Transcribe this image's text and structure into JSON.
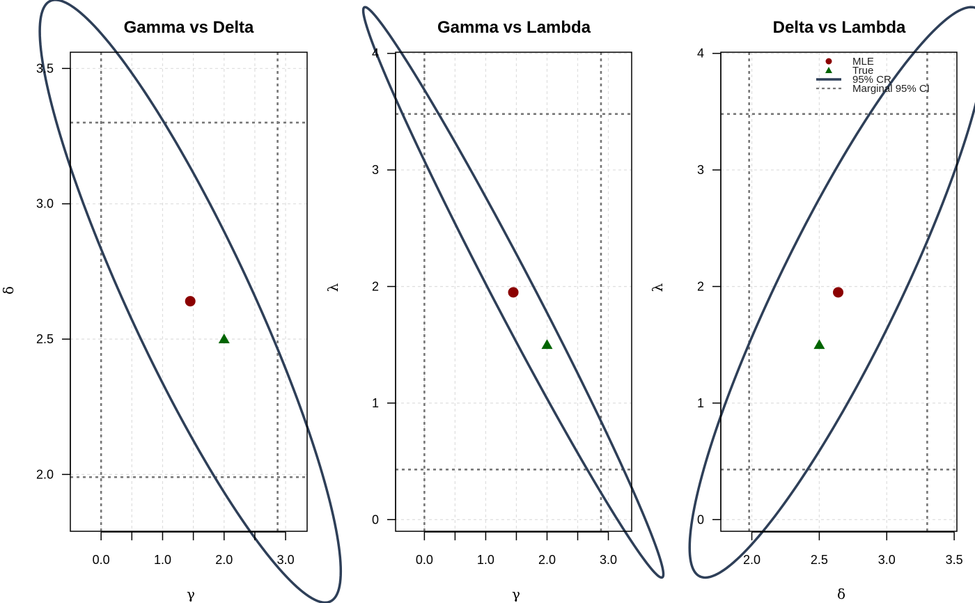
{
  "colors": {
    "mle": "#8b0000",
    "true": "#006400",
    "cr": "#2e3f58",
    "ci": "#777777",
    "grid": "#dedede"
  },
  "legend": {
    "entries": [
      {
        "label": "MLE",
        "kind": "point-circle",
        "color": "#8b0000"
      },
      {
        "label": "True",
        "kind": "point-triangle",
        "color": "#006400"
      },
      {
        "label": "95% CR",
        "kind": "line-solid",
        "color": "#2e3f58"
      },
      {
        "label": "Marginal 95% CI",
        "kind": "line-dashed",
        "color": "#777777"
      }
    ],
    "placement": "top-right of third panel"
  },
  "chart_data": [
    {
      "type": "scatter",
      "title": "Gamma vs Delta",
      "xlabel": "γ",
      "ylabel": "δ",
      "xlim": [
        -0.5,
        3.35
      ],
      "ylim": [
        1.79,
        3.56
      ],
      "xticks": [
        0.0,
        0.5,
        1.0,
        1.5,
        2.0,
        2.5,
        3.0
      ],
      "xtick_labels": [
        "0.0",
        "",
        "1.0",
        "",
        "2.0",
        "",
        "3.0"
      ],
      "yticks": [
        2.0,
        2.5,
        3.0,
        3.5
      ],
      "ytick_labels": [
        "2.0",
        "2.5",
        "3.0",
        "3.5"
      ],
      "mle": [
        1.45,
        2.64
      ],
      "true": [
        2.0,
        2.5
      ],
      "ci_x": [
        0.0,
        2.87
      ],
      "ci_y": [
        1.99,
        3.3
      ],
      "region": {
        "center": [
          1.45,
          2.64
        ],
        "sx": 1.0,
        "sy": 0.455,
        "rho": -0.896,
        "c": 2.447
      },
      "grid": true
    },
    {
      "type": "scatter",
      "title": "Gamma vs Lambda",
      "xlabel": "γ",
      "ylabel": "λ",
      "xlim": [
        -0.47,
        3.38
      ],
      "ylim": [
        -0.1,
        4.01
      ],
      "xticks": [
        0.0,
        0.5,
        1.0,
        1.5,
        2.0,
        2.5,
        3.0
      ],
      "xtick_labels": [
        "0.0",
        "",
        "1.0",
        "",
        "2.0",
        "",
        "3.0"
      ],
      "yticks": [
        0,
        1,
        2,
        3,
        4
      ],
      "ytick_labels": [
        "0",
        "1",
        "2",
        "3",
        "4"
      ],
      "mle": [
        1.45,
        1.95
      ],
      "true": [
        2.0,
        1.5
      ],
      "ci_x": [
        0.0,
        2.88
      ],
      "ci_y": [
        0.43,
        3.48
      ],
      "region": {
        "center": [
          1.45,
          1.95
        ],
        "sx": 1.0,
        "sy": 1.0,
        "rho": -0.988,
        "c": 2.447
      },
      "grid": true
    },
    {
      "type": "scatter",
      "title": "Delta vs Lambda",
      "xlabel": "δ",
      "ylabel": "λ",
      "xlim": [
        1.77,
        3.52
      ],
      "ylim": [
        -0.1,
        4.01
      ],
      "xticks": [
        2.0,
        2.5,
        3.0,
        3.5
      ],
      "xtick_labels": [
        "2.0",
        "2.5",
        "3.0",
        "3.5"
      ],
      "yticks": [
        0,
        1,
        2,
        3,
        4
      ],
      "ytick_labels": [
        "0",
        "1",
        "2",
        "3",
        "4"
      ],
      "mle": [
        2.64,
        1.95
      ],
      "true": [
        2.5,
        1.5
      ],
      "ci_x": [
        1.98,
        3.3
      ],
      "ci_y": [
        0.43,
        3.48
      ],
      "region": {
        "center": [
          2.64,
          1.95
        ],
        "sx": 0.45,
        "sy": 1.0,
        "rho": 0.895,
        "c": 2.447
      },
      "grid": true
    }
  ]
}
